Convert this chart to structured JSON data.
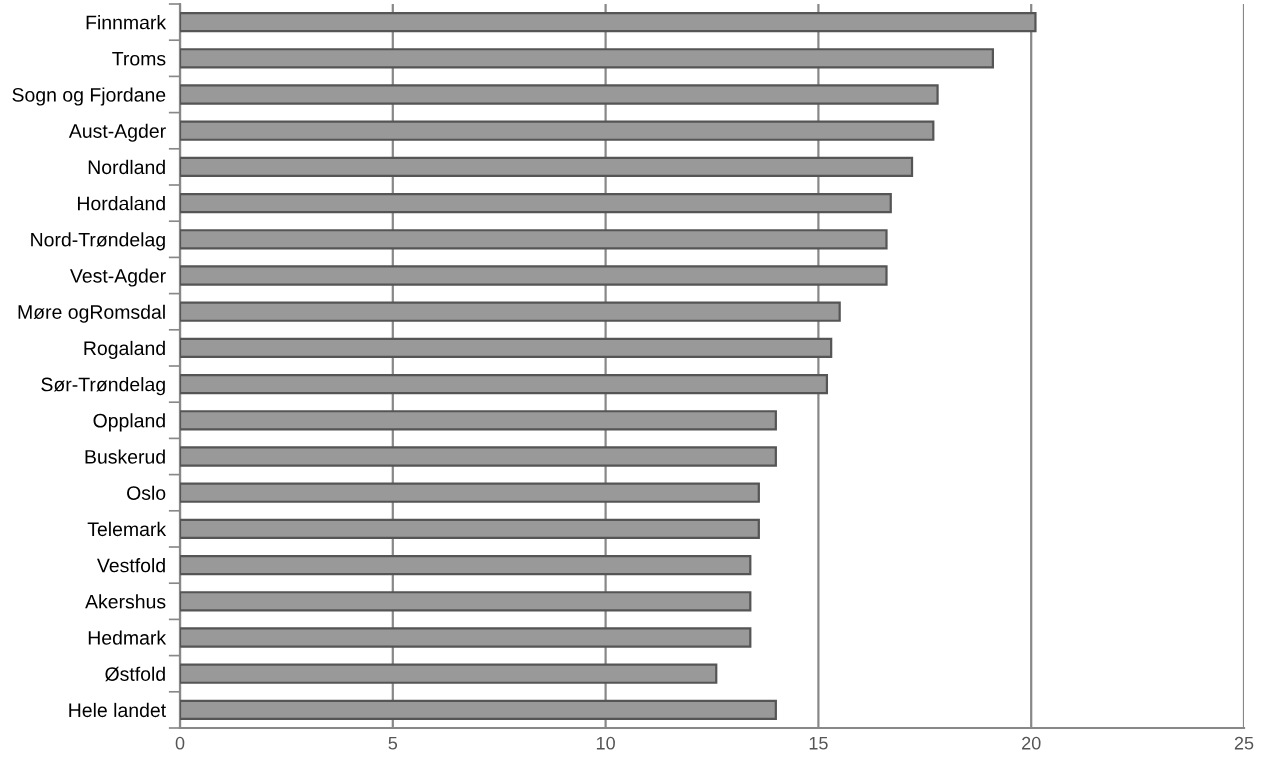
{
  "chart_data": {
    "type": "bar",
    "orientation": "horizontal",
    "categories": [
      "Finnmark",
      "Troms",
      "Sogn og Fjordane",
      "Aust-Agder",
      "Nordland",
      "Hordaland",
      "Nord-Trøndelag",
      "Vest-Agder",
      "Møre ogRomsdal",
      "Rogaland",
      "Sør-Trøndelag",
      "Oppland",
      "Buskerud",
      "Oslo",
      "Telemark",
      "Vestfold",
      "Akershus",
      "Hedmark",
      "Østfold",
      "Hele landet"
    ],
    "values": [
      20.1,
      19.1,
      17.8,
      17.7,
      17.2,
      16.7,
      16.6,
      16.6,
      15.5,
      15.3,
      15.2,
      14.0,
      14.0,
      13.6,
      13.6,
      13.4,
      13.4,
      13.4,
      12.6,
      14.0
    ],
    "color": "#999999",
    "xlim": [
      0,
      25
    ],
    "xticks": [
      0,
      5,
      10,
      15,
      20,
      25
    ],
    "grid": "x"
  }
}
